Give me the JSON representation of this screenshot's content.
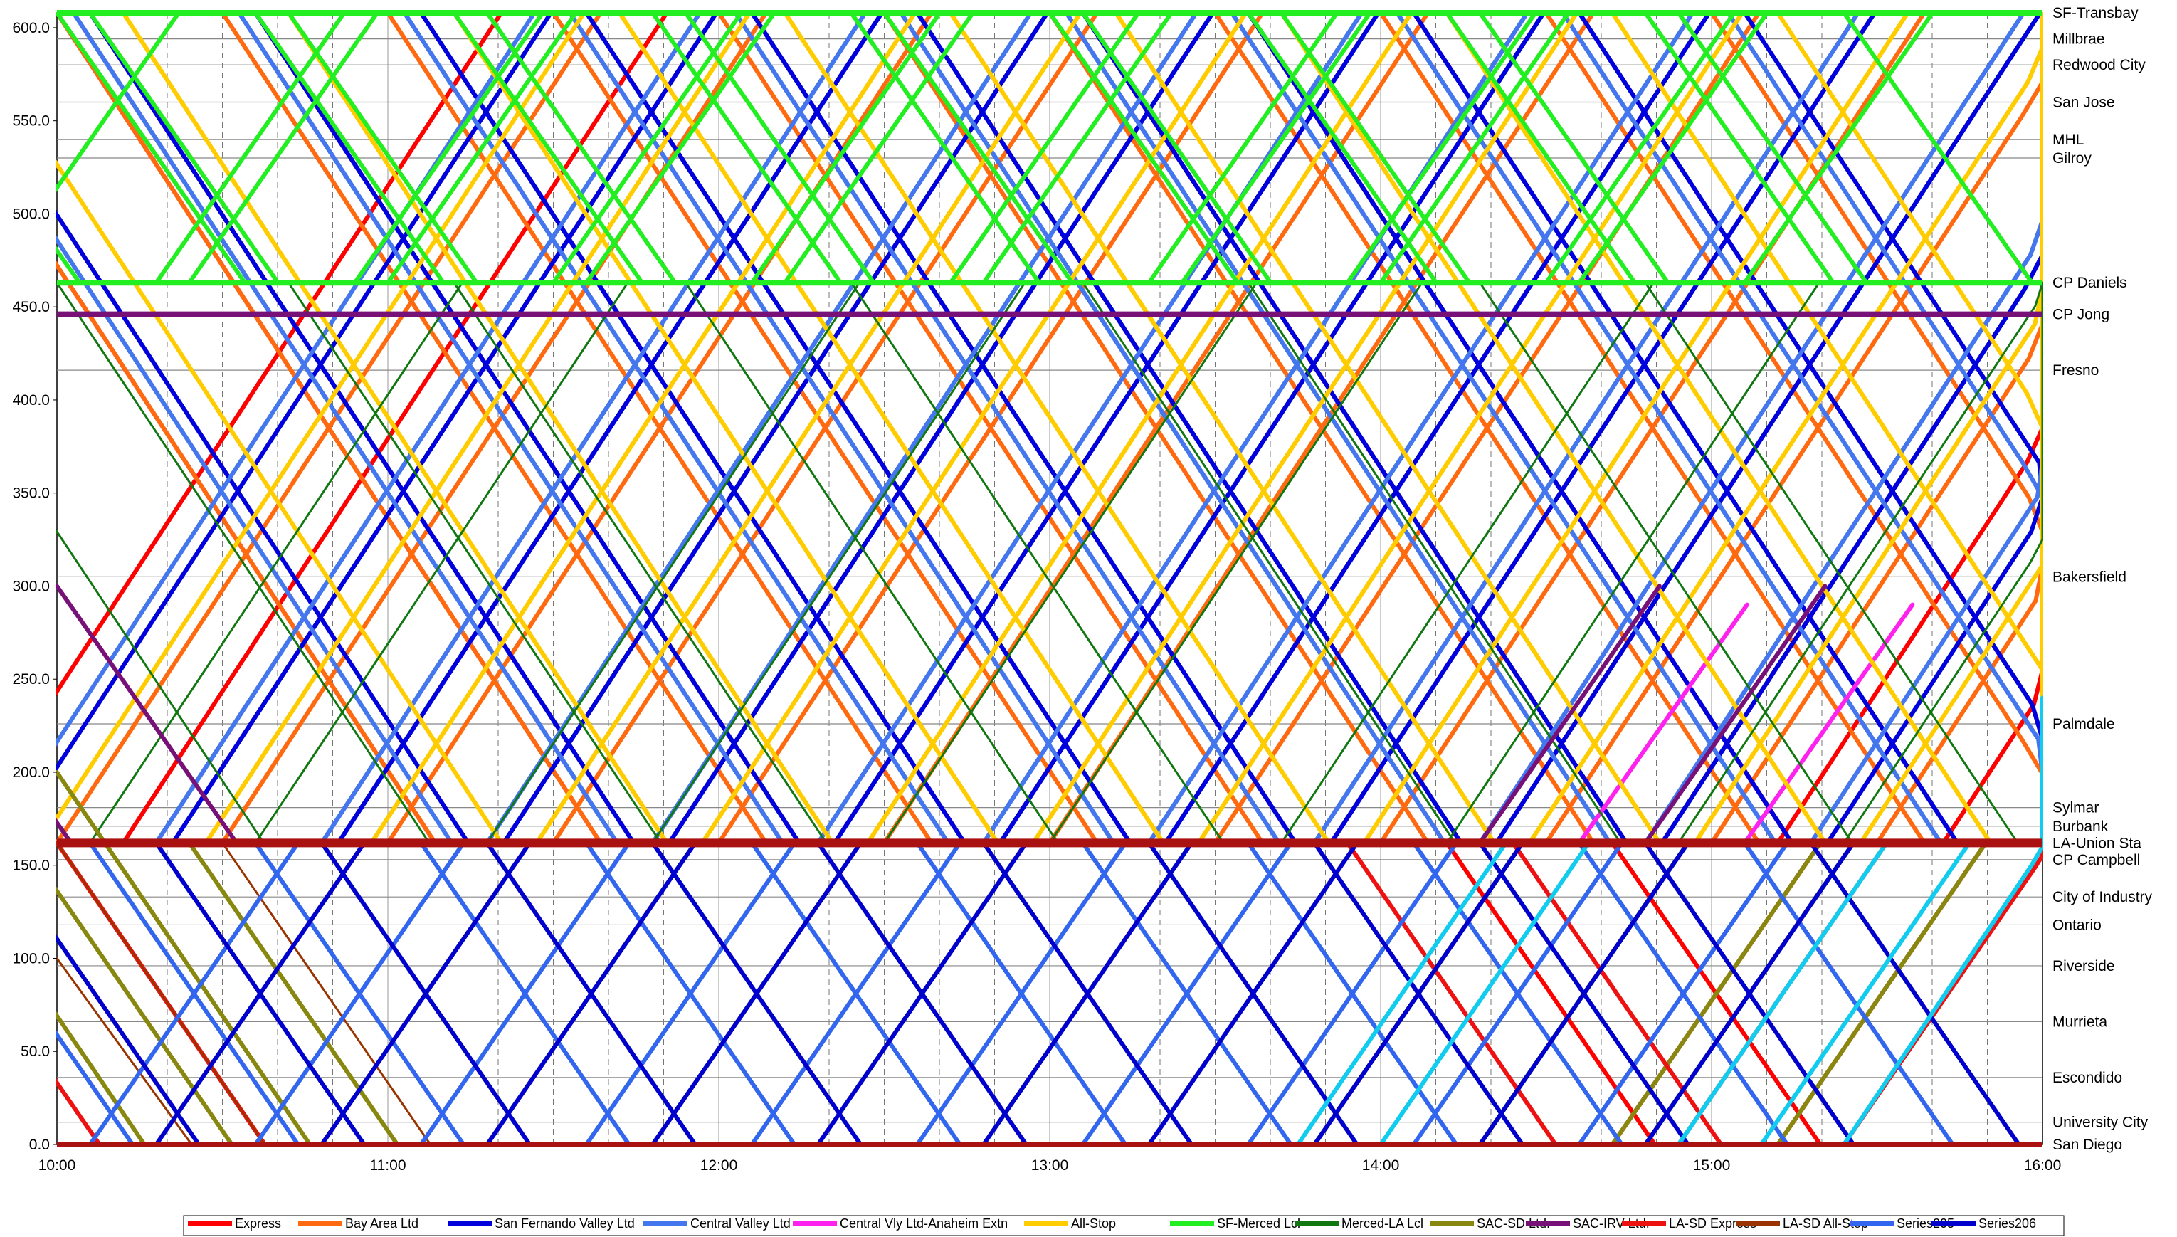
{
  "chart_data": {
    "type": "line",
    "title": "",
    "xlabel": "",
    "ylabel": "",
    "x_range": [
      "10:00",
      "16:00"
    ],
    "ylim": [
      0,
      608
    ],
    "x_ticks": [
      "10:00",
      "11:00",
      "12:00",
      "13:00",
      "14:00",
      "15:00",
      "16:00"
    ],
    "y_ticks": [
      "0.0",
      "50.0",
      "100.0",
      "150.0",
      "200.0",
      "250.0",
      "300.0",
      "350.0",
      "400.0",
      "450.0",
      "500.0",
      "550.0",
      "600.0"
    ],
    "y_tick_values": [
      0,
      50,
      100,
      150,
      200,
      250,
      300,
      350,
      400,
      450,
      500,
      550,
      600
    ],
    "grid": true,
    "legend_position": "bottom",
    "stations": [
      {
        "name": "SF-Transbay",
        "mp": 608
      },
      {
        "name": "Millbrae",
        "mp": 594
      },
      {
        "name": "Redwood City",
        "mp": 580
      },
      {
        "name": "San Jose",
        "mp": 560
      },
      {
        "name": "MHL",
        "mp": 540
      },
      {
        "name": "Gilroy",
        "mp": 530
      },
      {
        "name": "CP Daniels",
        "mp": 463
      },
      {
        "name": "CP Jong",
        "mp": 446
      },
      {
        "name": "Fresno",
        "mp": 416
      },
      {
        "name": "Bakersfield",
        "mp": 305
      },
      {
        "name": "Palmdale",
        "mp": 226
      },
      {
        "name": "Sylmar",
        "mp": 181
      },
      {
        "name": "Burbank",
        "mp": 171
      },
      {
        "name": "LA-Union Sta",
        "mp": 162
      },
      {
        "name": "CP Campbell",
        "mp": 153
      },
      {
        "name": "City of Industry",
        "mp": 133
      },
      {
        "name": "Ontario",
        "mp": 118
      },
      {
        "name": "Riverside",
        "mp": 96
      },
      {
        "name": "Murrieta",
        "mp": 66
      },
      {
        "name": "Escondido",
        "mp": 36
      },
      {
        "name": "University City",
        "mp": 12
      },
      {
        "name": "San Diego",
        "mp": 0
      }
    ],
    "series": [
      {
        "name": "Express",
        "color": "#ff0000",
        "trips": [
          [
            0,
            608,
            162
          ],
          [
            0.2,
            162,
            608
          ],
          [
            3.6,
            608,
            162
          ],
          [
            4.7,
            162,
            0
          ],
          [
            5.2,
            0,
            162
          ],
          [
            5.7,
            162,
            608
          ]
        ]
      },
      {
        "name": "Bay Area Ltd",
        "color": "#ff6a10",
        "trips": [
          [
            0.0,
            608,
            162
          ],
          [
            0.5,
            162,
            608
          ],
          [
            1.0,
            608,
            162
          ],
          [
            1.5,
            162,
            608
          ],
          [
            2.0,
            608,
            162
          ],
          [
            2.5,
            162,
            608
          ],
          [
            3.0,
            608,
            162
          ],
          [
            3.5,
            162,
            608
          ],
          [
            4.0,
            608,
            162
          ],
          [
            4.5,
            162,
            608
          ],
          [
            5.0,
            608,
            162
          ],
          [
            5.5,
            162,
            608
          ]
        ]
      },
      {
        "name": "San Fernando Valley Ltd",
        "color": "#0000dd",
        "trips": [
          [
            0.1,
            608,
            162
          ],
          [
            0.35,
            162,
            608
          ],
          [
            0.6,
            608,
            162
          ],
          [
            0.85,
            162,
            608
          ],
          [
            1.1,
            608,
            162
          ],
          [
            1.35,
            162,
            608
          ],
          [
            1.6,
            608,
            162
          ],
          [
            1.85,
            162,
            608
          ],
          [
            2.1,
            608,
            162
          ],
          [
            2.35,
            162,
            608
          ],
          [
            2.6,
            608,
            162
          ],
          [
            2.85,
            162,
            608
          ],
          [
            3.1,
            608,
            162
          ],
          [
            3.35,
            162,
            608
          ],
          [
            3.6,
            608,
            162
          ],
          [
            3.85,
            162,
            608
          ],
          [
            4.1,
            608,
            162
          ],
          [
            4.35,
            162,
            608
          ],
          [
            4.6,
            608,
            162
          ],
          [
            4.85,
            162,
            608
          ],
          [
            5.1,
            608,
            162
          ],
          [
            5.35,
            162,
            608
          ]
        ]
      },
      {
        "name": "Central Valley Ltd",
        "color": "#4477ee",
        "trips": [
          [
            0.05,
            608,
            162
          ],
          [
            0.3,
            162,
            608
          ],
          [
            0.55,
            608,
            162
          ],
          [
            0.8,
            162,
            608
          ],
          [
            1.05,
            608,
            162
          ],
          [
            1.3,
            162,
            608
          ],
          [
            1.55,
            608,
            162
          ],
          [
            1.8,
            162,
            608
          ],
          [
            2.05,
            608,
            162
          ],
          [
            2.3,
            162,
            608
          ],
          [
            2.55,
            608,
            162
          ],
          [
            2.8,
            162,
            608
          ],
          [
            3.05,
            608,
            162
          ],
          [
            3.3,
            162,
            608
          ],
          [
            3.55,
            608,
            162
          ],
          [
            3.8,
            162,
            608
          ],
          [
            4.05,
            608,
            162
          ],
          [
            4.3,
            162,
            608
          ],
          [
            4.55,
            608,
            162
          ],
          [
            4.8,
            162,
            608
          ],
          [
            5.05,
            608,
            162
          ],
          [
            5.3,
            162,
            608
          ]
        ]
      },
      {
        "name": "Central Vly Ltd-Anaheim Extn",
        "color": "#ff22ee",
        "trips": [
          [
            5.1,
            162,
            290
          ]
        ]
      },
      {
        "name": "All-Stop",
        "color": "#ffcc00",
        "trips": [
          [
            0.2,
            608,
            162
          ],
          [
            0.45,
            162,
            608
          ],
          [
            0.7,
            608,
            162
          ],
          [
            0.95,
            162,
            608
          ],
          [
            1.2,
            608,
            162
          ],
          [
            1.45,
            162,
            608
          ],
          [
            1.7,
            608,
            162
          ],
          [
            1.95,
            162,
            608
          ],
          [
            2.2,
            608,
            162
          ],
          [
            2.45,
            162,
            608
          ],
          [
            2.7,
            608,
            162
          ],
          [
            2.95,
            162,
            608
          ],
          [
            3.2,
            608,
            162
          ],
          [
            3.45,
            162,
            608
          ],
          [
            3.7,
            608,
            162
          ],
          [
            3.95,
            162,
            608
          ],
          [
            4.2,
            608,
            162
          ],
          [
            4.45,
            162,
            608
          ],
          [
            4.7,
            608,
            162
          ],
          [
            4.95,
            162,
            608
          ],
          [
            5.2,
            608,
            162
          ],
          [
            5.45,
            162,
            608
          ]
        ]
      },
      {
        "name": "SF-Merced Lcl",
        "color": "#22ee22",
        "trips": [
          [
            0.0,
            608,
            463
          ],
          [
            0.3,
            463,
            608
          ],
          [
            0.6,
            608,
            463
          ],
          [
            0.9,
            463,
            608
          ],
          [
            1.2,
            608,
            463
          ],
          [
            1.5,
            463,
            608
          ],
          [
            1.8,
            608,
            463
          ],
          [
            2.1,
            463,
            608
          ],
          [
            2.4,
            608,
            463
          ],
          [
            2.7,
            463,
            608
          ],
          [
            3.0,
            608,
            463
          ],
          [
            3.3,
            463,
            608
          ],
          [
            3.6,
            608,
            463
          ],
          [
            3.9,
            463,
            608
          ],
          [
            4.2,
            608,
            463
          ],
          [
            4.5,
            463,
            608
          ],
          [
            4.8,
            608,
            463
          ],
          [
            5.1,
            463,
            608
          ],
          [
            5.4,
            608,
            463
          ]
        ]
      },
      {
        "name": "Merced-LA Lcl",
        "color": "#117711",
        "trips": [
          [
            0.0,
            463,
            162
          ],
          [
            0.6,
            162,
            463
          ],
          [
            1.2,
            463,
            162
          ],
          [
            1.8,
            162,
            463
          ],
          [
            2.4,
            463,
            162
          ],
          [
            3.0,
            162,
            463
          ],
          [
            3.6,
            463,
            162
          ],
          [
            4.2,
            162,
            463
          ],
          [
            4.8,
            463,
            162
          ],
          [
            5.4,
            162,
            463
          ]
        ]
      },
      {
        "name": "SAC-SD Ltd.",
        "color": "#888811",
        "trips": [
          [
            0.0,
            200,
            0
          ],
          [
            0.4,
            162,
            0
          ],
          [
            4.3,
            0,
            162
          ],
          [
            4.8,
            0,
            162
          ],
          [
            5.2,
            0,
            162
          ]
        ]
      },
      {
        "name": "SAC-IRV Ltd.",
        "color": "#771177",
        "trips": [
          [
            0.0,
            300,
            162
          ],
          [
            4.8,
            162,
            300
          ]
        ]
      },
      {
        "name": "LA-SD Express",
        "color": "#ee1111",
        "trips": [
          [
            0.0,
            162,
            0
          ],
          [
            4.4,
            162,
            0
          ],
          [
            5.4,
            0,
            162
          ]
        ]
      },
      {
        "name": "LA-SD All-Stop",
        "color": "#993300",
        "trips": [
          [
            0.0,
            100,
            0
          ],
          [
            0.5,
            162,
            0
          ],
          [
            4.6,
            0,
            162
          ],
          [
            5.3,
            162,
            0
          ]
        ]
      },
      {
        "name": "Series205",
        "color": "#3366ee",
        "trips": [
          [
            0.1,
            162,
            0
          ],
          [
            0.6,
            0,
            162
          ],
          [
            1.1,
            162,
            0
          ],
          [
            1.6,
            0,
            162
          ],
          [
            2.1,
            162,
            0
          ],
          [
            2.6,
            0,
            162
          ],
          [
            3.1,
            162,
            0
          ],
          [
            3.6,
            0,
            162
          ],
          [
            4.1,
            162,
            0
          ],
          [
            4.6,
            0,
            162
          ],
          [
            5.1,
            162,
            0
          ]
        ]
      },
      {
        "name": "Series206",
        "color": "#0000cc",
        "trips": [
          [
            0.3,
            162,
            0
          ],
          [
            0.8,
            0,
            162
          ],
          [
            1.3,
            162,
            0
          ],
          [
            1.8,
            0,
            162
          ],
          [
            2.3,
            162,
            0
          ],
          [
            2.8,
            0,
            162
          ],
          [
            3.3,
            162,
            0
          ],
          [
            3.8,
            0,
            162
          ],
          [
            4.3,
            162,
            0
          ],
          [
            4.8,
            0,
            162
          ],
          [
            5.3,
            162,
            0
          ]
        ]
      }
    ],
    "extra_series_colors": {
      "Cyan": "#11ccee"
    },
    "extra_trips_cyan": [
      [
        3.75,
        0,
        162
      ],
      [
        4.0,
        0,
        162
      ],
      [
        4.9,
        0,
        162
      ],
      [
        5.15,
        0,
        162
      ],
      [
        5.4,
        0,
        240
      ]
    ]
  }
}
